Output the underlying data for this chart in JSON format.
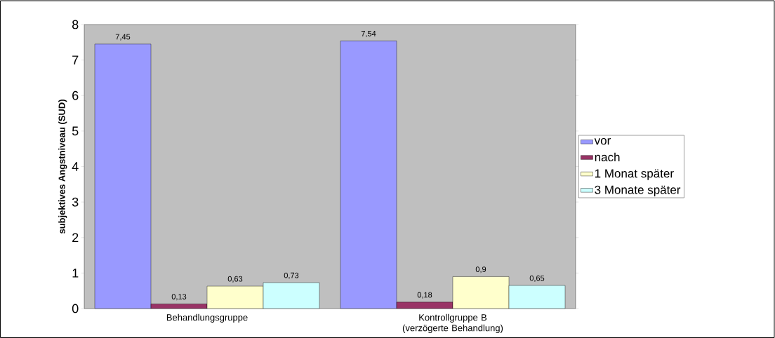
{
  "chart_data": {
    "type": "bar",
    "ylabel": "subjektives Angstniveau (SUD)",
    "categories": [
      "Behandlungsgruppe",
      "Kontrollgruppe B (verzögerte Behandlung)"
    ],
    "series": [
      {
        "name": "vor",
        "color": "#9999ff",
        "values": [
          7.45,
          7.54
        ],
        "value_labels": [
          "7,45",
          "7,54"
        ]
      },
      {
        "name": "nach",
        "color": "#993366",
        "values": [
          0.13,
          0.18
        ],
        "value_labels": [
          "0,13",
          "0,18"
        ]
      },
      {
        "name": "1 Monat später",
        "color": "#ffffcc",
        "values": [
          0.63,
          0.9
        ],
        "value_labels": [
          "0,63",
          "0,9"
        ]
      },
      {
        "name": "3 Monate später",
        "color": "#ccffff",
        "values": [
          0.73,
          0.65
        ],
        "value_labels": [
          "0,73",
          "0,65"
        ]
      }
    ],
    "ylim": [
      0,
      8
    ],
    "yticks": [
      0,
      1,
      2,
      3,
      4,
      5,
      6,
      7,
      8
    ],
    "grid": false,
    "legend": "right"
  }
}
